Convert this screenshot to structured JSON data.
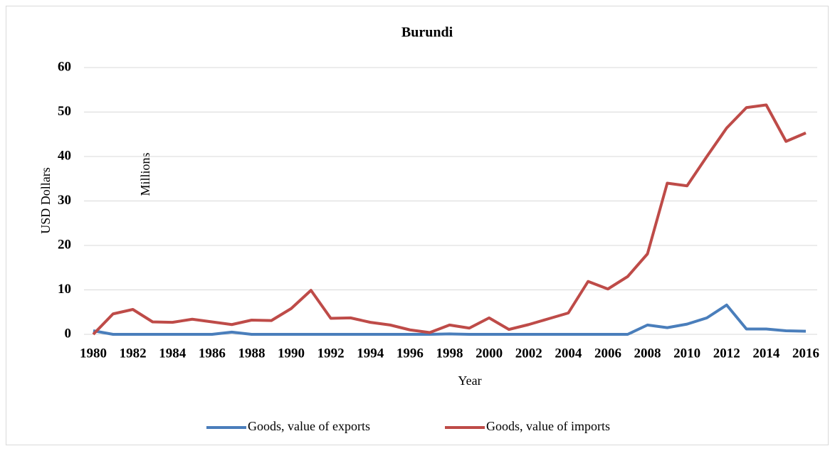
{
  "chart_data": {
    "type": "line",
    "title": "Burundi",
    "x_label": "Year",
    "y_label": "USD Dollars",
    "y_unit_label": "Millions",
    "x": [
      1980,
      1981,
      1982,
      1983,
      1984,
      1985,
      1986,
      1987,
      1988,
      1989,
      1990,
      1991,
      1992,
      1993,
      1994,
      1995,
      1996,
      1997,
      1998,
      1999,
      2000,
      2001,
      2002,
      2003,
      2004,
      2005,
      2006,
      2007,
      2008,
      2009,
      2010,
      2011,
      2012,
      2013,
      2014,
      2015,
      2016
    ],
    "xlim": [
      1980,
      2016
    ],
    "xticks": [
      1980,
      1982,
      1984,
      1986,
      1988,
      1990,
      1992,
      1994,
      1996,
      1998,
      2000,
      2002,
      2004,
      2006,
      2008,
      2010,
      2012,
      2014,
      2016
    ],
    "ylim": [
      0,
      60
    ],
    "yticks": [
      0,
      10,
      20,
      30,
      40,
      50,
      60
    ],
    "grid": true,
    "legend": "bottom",
    "series": [
      {
        "name": "Goods, value of exports",
        "color": "#4a7ebb",
        "values": [
          0.8,
          0,
          0,
          0,
          0,
          0,
          0,
          0.5,
          0,
          0,
          0,
          0,
          0,
          0,
          0,
          0,
          0,
          0,
          0.1,
          0,
          0,
          0,
          0,
          0,
          0,
          0,
          0,
          0,
          2.1,
          1.5,
          2.3,
          3.7,
          6.6,
          1.2,
          1.2,
          0.8,
          0.7
        ]
      },
      {
        "name": "Goods, value of imports",
        "color": "#be4b48",
        "values": [
          0,
          4.6,
          5.6,
          2.8,
          2.7,
          3.4,
          2.8,
          2.2,
          3.2,
          3.1,
          5.8,
          9.9,
          3.6,
          3.7,
          2.7,
          2.1,
          1.0,
          0.4,
          2.1,
          1.4,
          3.7,
          1.1,
          2.2,
          3.5,
          4.8,
          11.9,
          10.2,
          13,
          18.1,
          34,
          33.4,
          40,
          46.4,
          51,
          51.6,
          43.4,
          45.3
        ]
      }
    ]
  }
}
